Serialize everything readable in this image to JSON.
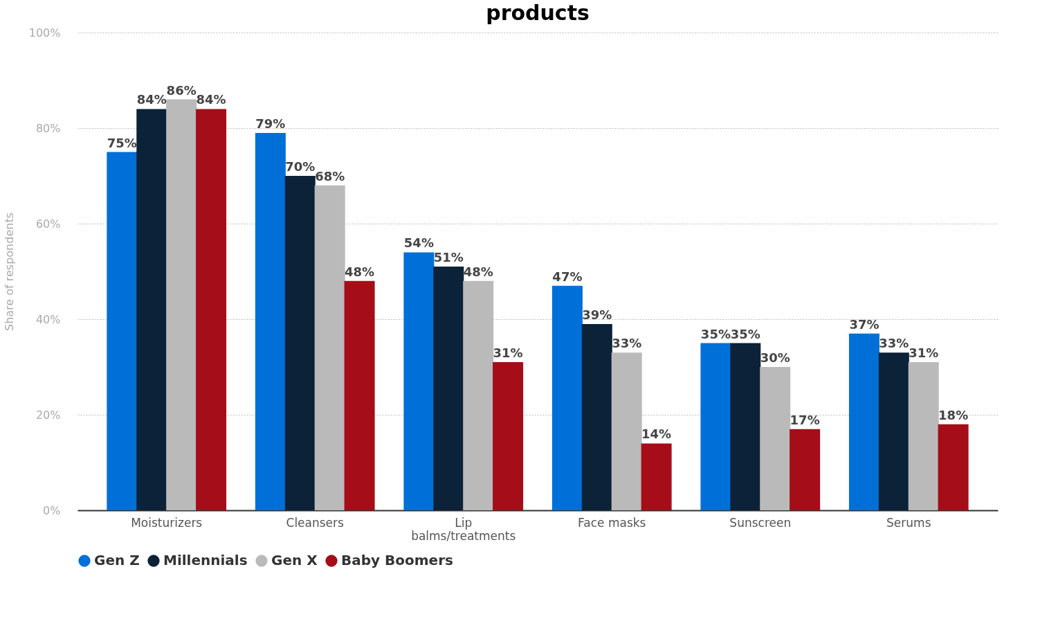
{
  "chart_data": {
    "type": "bar",
    "title": "products",
    "ylabel": "Share of respondents",
    "categories": [
      "Moisturizers",
      "Cleansers",
      "Lip balms/treatments",
      "Face masks",
      "Sunscreen",
      "Serums"
    ],
    "series": [
      {
        "name": "Gen Z",
        "color": "#0070d8",
        "values": [
          75,
          79,
          54,
          47,
          35,
          37
        ],
        "value_labels": [
          "75%",
          "79%",
          "54%",
          "47%",
          "35%",
          "37%"
        ]
      },
      {
        "name": "Millennials",
        "color": "#0b2238",
        "values": [
          84,
          70,
          51,
          39,
          35,
          33
        ],
        "value_labels": [
          "84%",
          "70%",
          "51%",
          "39%",
          "35%",
          "33%"
        ]
      },
      {
        "name": "Gen X",
        "color": "#bababa",
        "values": [
          86,
          68,
          48,
          33,
          30,
          31
        ],
        "value_labels": [
          "86%",
          "68%",
          "48%",
          "33%",
          "30%",
          "31%"
        ]
      },
      {
        "name": "Baby Boomers",
        "color": "#a50d18",
        "values": [
          84,
          48,
          31,
          14,
          17,
          18
        ],
        "value_labels": [
          "84%",
          "48%",
          "31%",
          "14%",
          "17%",
          "18%"
        ]
      }
    ],
    "ylim": [
      0,
      100
    ],
    "yticks": [
      {
        "value": 0,
        "label": "0%"
      },
      {
        "value": 20,
        "label": "20%"
      },
      {
        "value": 40,
        "label": "40%"
      },
      {
        "value": 60,
        "label": "60%"
      },
      {
        "value": 80,
        "label": "80%"
      },
      {
        "value": 100,
        "label": "100%"
      }
    ],
    "grid": "y",
    "legend": "bottom"
  }
}
